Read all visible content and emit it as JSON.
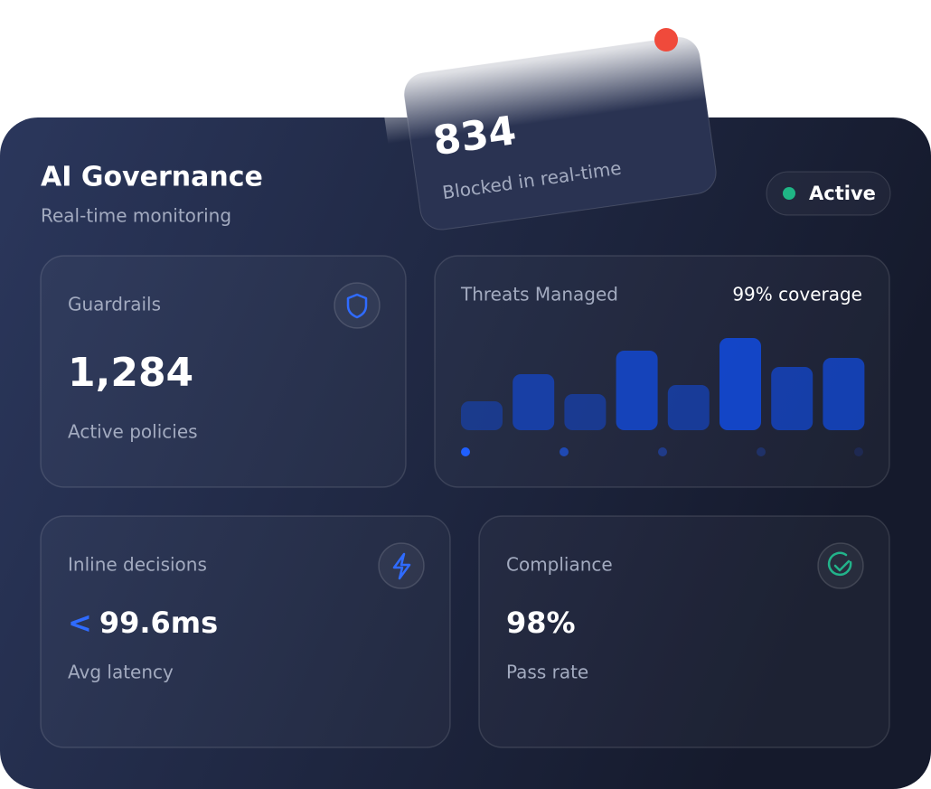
{
  "floating_card": {
    "value": "834",
    "label": "Blocked in real-time"
  },
  "header": {
    "title": "AI Governance",
    "subtitle": "Real-time monitoring",
    "status": "Active"
  },
  "guardrails": {
    "label": "Guardrails",
    "value": "1,284",
    "caption": "Active policies"
  },
  "threats": {
    "label": "Threats Managed",
    "coverage": "99% coverage",
    "bars": [
      32,
      62,
      40,
      88,
      50,
      102,
      70,
      80
    ]
  },
  "latency": {
    "label": "Inline decisions",
    "comparator": "<",
    "value": "99.6ms",
    "caption": "Avg latency"
  },
  "compliance": {
    "label": "Compliance",
    "value": "98%",
    "caption": "Pass rate"
  }
}
